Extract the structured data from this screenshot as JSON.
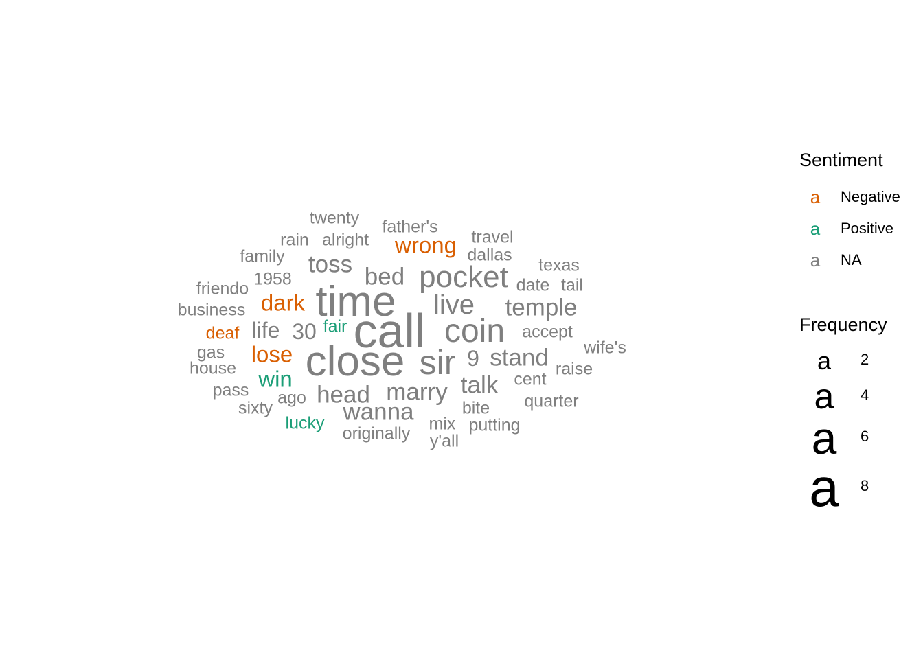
{
  "chart_data": {
    "type": "wordcloud",
    "legend_placement": "right",
    "colors": {
      "Negative": "#d95f02",
      "Positive": "#1b9e77",
      "NA": "#7f7f7f"
    },
    "sentiment_legend": {
      "title": "Sentiment",
      "key_glyph": "a",
      "entries": [
        {
          "label": "Negative",
          "sentiment": "Negative"
        },
        {
          "label": "Positive",
          "sentiment": "Positive"
        },
        {
          "label": "NA",
          "sentiment": "NA"
        }
      ]
    },
    "frequency_legend": {
      "title": "Frequency",
      "key_glyph": "a",
      "breaks": [
        {
          "label": "2",
          "value": 2
        },
        {
          "label": "4",
          "value": 4
        },
        {
          "label": "6",
          "value": 6
        },
        {
          "label": "8",
          "value": 8
        }
      ]
    },
    "words": [
      {
        "word": "call",
        "freq": 8,
        "sentiment": "NA"
      },
      {
        "word": "time",
        "freq": 7,
        "sentiment": "NA"
      },
      {
        "word": "close",
        "freq": 7,
        "sentiment": "NA"
      },
      {
        "word": "sir",
        "freq": 6,
        "sentiment": "NA"
      },
      {
        "word": "coin",
        "freq": 5,
        "sentiment": "NA"
      },
      {
        "word": "pocket",
        "freq": 4,
        "sentiment": "NA"
      },
      {
        "word": "live",
        "freq": 4,
        "sentiment": "NA"
      },
      {
        "word": "stand",
        "freq": 3,
        "sentiment": "NA"
      },
      {
        "word": "temple",
        "freq": 3,
        "sentiment": "NA"
      },
      {
        "word": "talk",
        "freq": 3,
        "sentiment": "NA"
      },
      {
        "word": "marry",
        "freq": 3,
        "sentiment": "NA"
      },
      {
        "word": "head",
        "freq": 3,
        "sentiment": "NA"
      },
      {
        "word": "wanna",
        "freq": 3,
        "sentiment": "NA"
      },
      {
        "word": "bed",
        "freq": 3,
        "sentiment": "NA"
      },
      {
        "word": "toss",
        "freq": 3,
        "sentiment": "NA"
      },
      {
        "word": "wrong",
        "freq": 3,
        "sentiment": "Negative"
      },
      {
        "word": "dark",
        "freq": 3,
        "sentiment": "Negative"
      },
      {
        "word": "lose",
        "freq": 3,
        "sentiment": "Negative"
      },
      {
        "word": "win",
        "freq": 3,
        "sentiment": "Positive"
      },
      {
        "word": "life",
        "freq": 3,
        "sentiment": "NA"
      },
      {
        "word": "30",
        "freq": 3,
        "sentiment": "NA"
      },
      {
        "word": "9",
        "freq": 3,
        "sentiment": "NA"
      },
      {
        "word": "twenty",
        "freq": 2,
        "sentiment": "NA"
      },
      {
        "word": "father's",
        "freq": 2,
        "sentiment": "NA"
      },
      {
        "word": "rain",
        "freq": 2,
        "sentiment": "NA"
      },
      {
        "word": "alright",
        "freq": 2,
        "sentiment": "NA"
      },
      {
        "word": "travel",
        "freq": 2,
        "sentiment": "NA"
      },
      {
        "word": "dallas",
        "freq": 2,
        "sentiment": "NA"
      },
      {
        "word": "family",
        "freq": 2,
        "sentiment": "NA"
      },
      {
        "word": "texas",
        "freq": 2,
        "sentiment": "NA"
      },
      {
        "word": "1958",
        "freq": 2,
        "sentiment": "NA"
      },
      {
        "word": "friendo",
        "freq": 2,
        "sentiment": "NA"
      },
      {
        "word": "date",
        "freq": 2,
        "sentiment": "NA"
      },
      {
        "word": "tail",
        "freq": 2,
        "sentiment": "NA"
      },
      {
        "word": "business",
        "freq": 2,
        "sentiment": "NA"
      },
      {
        "word": "fair",
        "freq": 2,
        "sentiment": "Positive"
      },
      {
        "word": "accept",
        "freq": 2,
        "sentiment": "NA"
      },
      {
        "word": "deaf",
        "freq": 2,
        "sentiment": "Negative"
      },
      {
        "word": "wife's",
        "freq": 2,
        "sentiment": "NA"
      },
      {
        "word": "gas",
        "freq": 2,
        "sentiment": "NA"
      },
      {
        "word": "house",
        "freq": 2,
        "sentiment": "NA"
      },
      {
        "word": "raise",
        "freq": 2,
        "sentiment": "NA"
      },
      {
        "word": "cent",
        "freq": 2,
        "sentiment": "NA"
      },
      {
        "word": "pass",
        "freq": 2,
        "sentiment": "NA"
      },
      {
        "word": "ago",
        "freq": 2,
        "sentiment": "NA"
      },
      {
        "word": "quarter",
        "freq": 2,
        "sentiment": "NA"
      },
      {
        "word": "sixty",
        "freq": 2,
        "sentiment": "NA"
      },
      {
        "word": "bite",
        "freq": 2,
        "sentiment": "NA"
      },
      {
        "word": "lucky",
        "freq": 2,
        "sentiment": "Positive"
      },
      {
        "word": "mix",
        "freq": 2,
        "sentiment": "NA"
      },
      {
        "word": "putting",
        "freq": 2,
        "sentiment": "NA"
      },
      {
        "word": "originally",
        "freq": 2,
        "sentiment": "NA"
      },
      {
        "word": "y'all",
        "freq": 2,
        "sentiment": "NA"
      }
    ]
  }
}
